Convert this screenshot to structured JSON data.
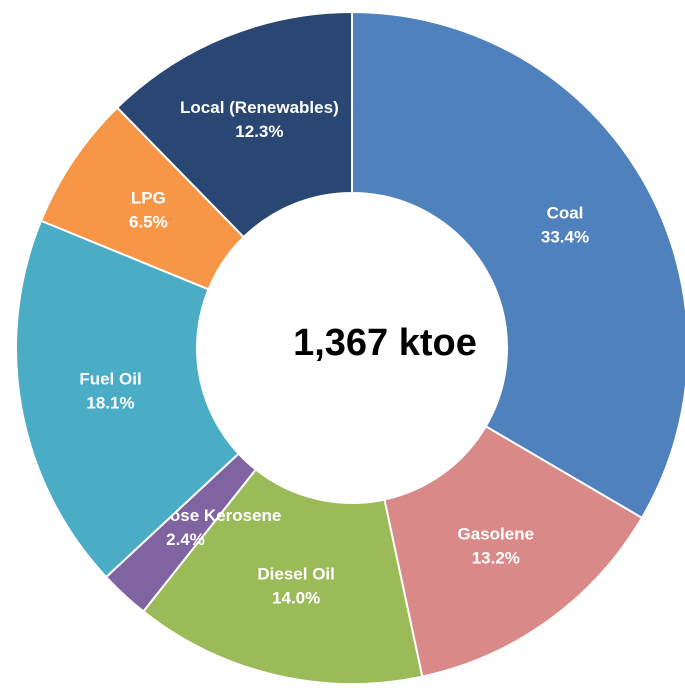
{
  "chart_data": {
    "type": "donut",
    "center_text": "1,367 ktoe",
    "categories": [
      "Coal",
      "Gasolene",
      "Diesel Oil",
      "Dual Purpose Kerosene",
      "Fuel Oil",
      "LPG",
      "Local (Renewables)"
    ],
    "values": [
      33.4,
      13.2,
      14.0,
      2.4,
      18.1,
      6.5,
      12.3
    ],
    "value_labels": [
      "33.4%",
      "13.2%",
      "14.0%",
      "2.4%",
      "18.1%",
      "6.5%",
      "12.3%"
    ],
    "colors": [
      "#4f81bd",
      "#d98987",
      "#9bbb59",
      "#8064a2",
      "#4bacc6",
      "#f79646",
      "#2a4672"
    ]
  }
}
